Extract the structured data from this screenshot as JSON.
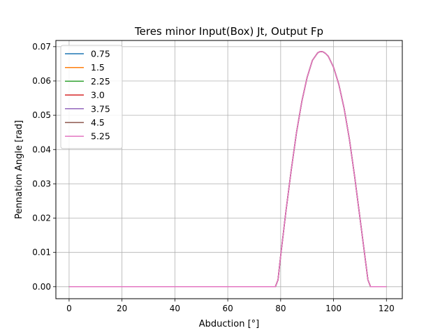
{
  "chart_data": {
    "type": "line",
    "title": "Teres minor Input(Box) Jt, Output Fp",
    "xlabel": "Abduction [°]",
    "ylabel": "Pennation Angle [rad]",
    "xlim": [
      -5,
      126
    ],
    "ylim": [
      -0.0035,
      0.0718
    ],
    "xticks": [
      0,
      20,
      40,
      60,
      80,
      100,
      120
    ],
    "yticks": [
      0.0,
      0.01,
      0.02,
      0.03,
      0.04,
      0.05,
      0.06,
      0.07
    ],
    "xtick_labels": [
      "0",
      "20",
      "40",
      "60",
      "80",
      "100",
      "120"
    ],
    "ytick_labels": [
      "0.00",
      "0.01",
      "0.02",
      "0.03",
      "0.04",
      "0.05",
      "0.06",
      "0.07"
    ],
    "grid": true,
    "legend_position": "top-left",
    "x": [
      0,
      10,
      20,
      30,
      40,
      50,
      60,
      70,
      78,
      79,
      80,
      82,
      84,
      86,
      88,
      90,
      92,
      94,
      95,
      96,
      97,
      98,
      100,
      102,
      104,
      106,
      108,
      110,
      111,
      112,
      113,
      114,
      120
    ],
    "series": [
      {
        "name": "0.75",
        "color": "#1f77b4",
        "values": [
          0,
          0,
          0,
          0,
          0,
          0,
          0,
          0,
          0,
          0.002,
          0.009,
          0.022,
          0.034,
          0.045,
          0.054,
          0.061,
          0.066,
          0.0682,
          0.0686,
          0.0685,
          0.068,
          0.0672,
          0.064,
          0.059,
          0.052,
          0.043,
          0.032,
          0.02,
          0.014,
          0.008,
          0.002,
          0,
          0
        ]
      },
      {
        "name": "1.5",
        "color": "#ff7f0e",
        "values": [
          0,
          0,
          0,
          0,
          0,
          0,
          0,
          0,
          0,
          0.002,
          0.009,
          0.022,
          0.034,
          0.045,
          0.054,
          0.061,
          0.066,
          0.0682,
          0.0686,
          0.0685,
          0.068,
          0.0672,
          0.064,
          0.059,
          0.052,
          0.043,
          0.032,
          0.02,
          0.014,
          0.008,
          0.002,
          0,
          0
        ]
      },
      {
        "name": "2.25",
        "color": "#2ca02c",
        "values": [
          0,
          0,
          0,
          0,
          0,
          0,
          0,
          0,
          0,
          0.002,
          0.009,
          0.022,
          0.034,
          0.045,
          0.054,
          0.061,
          0.066,
          0.0682,
          0.0686,
          0.0685,
          0.068,
          0.0672,
          0.064,
          0.059,
          0.052,
          0.043,
          0.032,
          0.02,
          0.014,
          0.008,
          0.002,
          0,
          0
        ]
      },
      {
        "name": "3.0",
        "color": "#d62728",
        "values": [
          0,
          0,
          0,
          0,
          0,
          0,
          0,
          0,
          0,
          0.002,
          0.009,
          0.022,
          0.034,
          0.045,
          0.054,
          0.061,
          0.066,
          0.0682,
          0.0686,
          0.0685,
          0.068,
          0.0672,
          0.064,
          0.059,
          0.052,
          0.043,
          0.032,
          0.02,
          0.014,
          0.008,
          0.002,
          0,
          0
        ]
      },
      {
        "name": "3.75",
        "color": "#9467bd",
        "values": [
          0,
          0,
          0,
          0,
          0,
          0,
          0,
          0,
          0,
          0.002,
          0.009,
          0.022,
          0.034,
          0.045,
          0.054,
          0.061,
          0.066,
          0.0682,
          0.0686,
          0.0685,
          0.068,
          0.0672,
          0.064,
          0.059,
          0.052,
          0.043,
          0.032,
          0.02,
          0.014,
          0.008,
          0.002,
          0,
          0
        ]
      },
      {
        "name": "4.5",
        "color": "#8c564b",
        "values": [
          0,
          0,
          0,
          0,
          0,
          0,
          0,
          0,
          0,
          0.002,
          0.009,
          0.022,
          0.034,
          0.045,
          0.054,
          0.061,
          0.066,
          0.0682,
          0.0686,
          0.0685,
          0.068,
          0.0672,
          0.064,
          0.059,
          0.052,
          0.043,
          0.032,
          0.02,
          0.014,
          0.008,
          0.002,
          0,
          0
        ]
      },
      {
        "name": "5.25",
        "color": "#e377c2",
        "values": [
          0,
          0,
          0,
          0,
          0,
          0,
          0,
          0,
          0,
          0.002,
          0.009,
          0.022,
          0.034,
          0.045,
          0.054,
          0.061,
          0.066,
          0.0682,
          0.0686,
          0.0685,
          0.068,
          0.0672,
          0.064,
          0.059,
          0.052,
          0.043,
          0.032,
          0.02,
          0.014,
          0.008,
          0.002,
          0,
          0
        ]
      }
    ]
  }
}
